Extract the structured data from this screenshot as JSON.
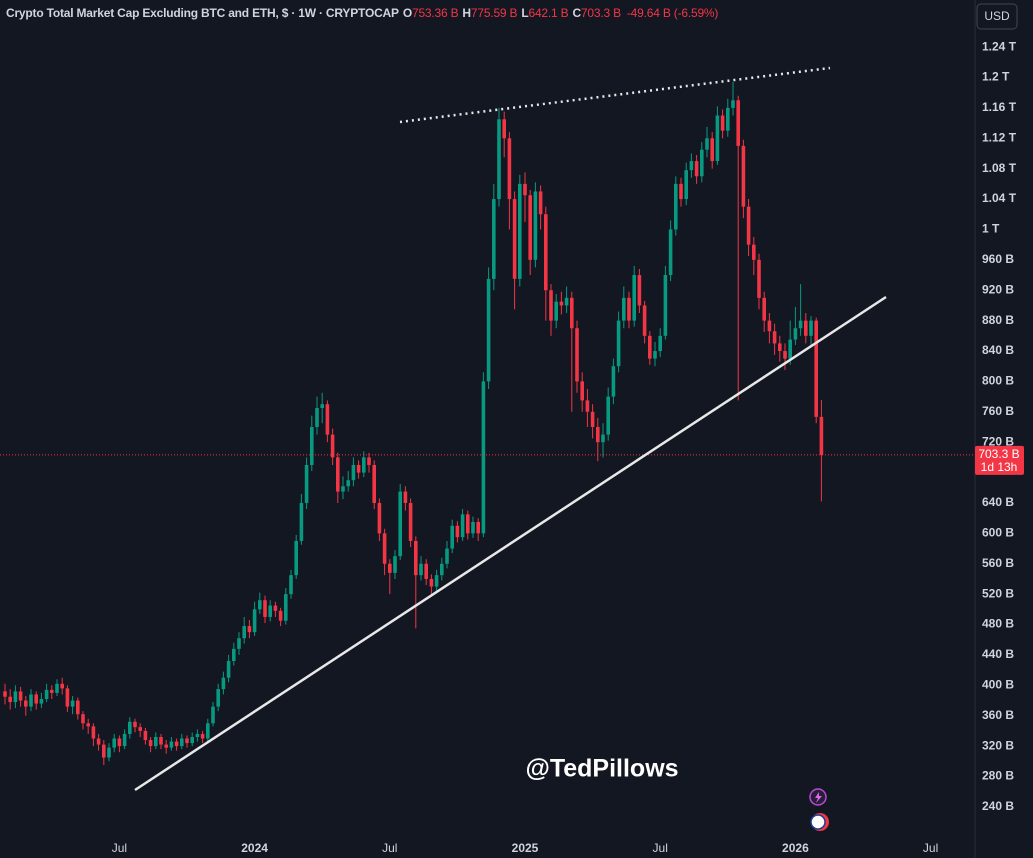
{
  "chart_data": {
    "type": "candlestick",
    "title": "Crypto Total Market Cap Excluding BTC and ETH, $ · 1W · CRYPTOCAP",
    "ohlc_header": [
      {
        "key": "O",
        "text": "753.36 B"
      },
      {
        "key": "H",
        "text": "775.59 B"
      },
      {
        "key": "L",
        "text": "642.1 B"
      },
      {
        "key": "C",
        "text": "703.3 B"
      }
    ],
    "change": "-49.64 B (-6.59%)",
    "currency": "USD",
    "last_price_label": "703.3 B",
    "countdown": "1d 13h",
    "watermark": "@TedPillows",
    "up_color": "#089981",
    "down_color": "#f23645",
    "grid": false,
    "categories": [
      null,
      null,
      null,
      null,
      null,
      null,
      null,
      null,
      null,
      null,
      null,
      null,
      null,
      null,
      null,
      null,
      null,
      null,
      null,
      null,
      null,
      null,
      "Jul",
      null,
      null,
      null,
      null,
      null,
      null,
      null,
      null,
      null,
      null,
      null,
      null,
      null,
      null,
      null,
      null,
      null,
      null,
      null,
      null,
      null,
      null,
      null,
      null,
      null,
      "2024",
      null,
      null,
      null,
      null,
      null,
      null,
      null,
      null,
      null,
      null,
      null,
      null,
      null,
      null,
      null,
      null,
      null,
      null,
      null,
      null,
      null,
      null,
      null,
      null,
      null,
      "Jul",
      null,
      null,
      null,
      null,
      null,
      null,
      null,
      null,
      null,
      null,
      null,
      null,
      null,
      null,
      null,
      null,
      null,
      null,
      null,
      null,
      null,
      null,
      null,
      null,
      null,
      "2025",
      null,
      null,
      null,
      null,
      null,
      null,
      null,
      null,
      null,
      null,
      null,
      null,
      null,
      null,
      null,
      null,
      null,
      null,
      null,
      null,
      null,
      null,
      null,
      null,
      null,
      "Jul",
      null,
      null,
      null,
      null,
      null,
      null,
      null,
      null,
      null,
      null,
      null,
      null,
      null,
      null,
      null,
      null,
      null,
      null,
      null,
      null,
      null,
      null,
      null,
      null,
      null,
      "2026",
      null,
      null,
      null,
      null,
      null,
      null,
      null,
      null,
      null,
      null,
      null,
      null,
      null,
      null,
      null,
      null,
      null,
      null,
      null,
      null,
      null,
      null,
      null,
      null,
      null,
      "Jul"
    ],
    "open": [
      392,
      385,
      378,
      392,
      380,
      372,
      388,
      376,
      382,
      394,
      390,
      402,
      396,
      372,
      380,
      362,
      350,
      346,
      330,
      322,
      305,
      318,
      330,
      320,
      336,
      352,
      345,
      340,
      328,
      320,
      332,
      322,
      318,
      326,
      320,
      330,
      324,
      332,
      336,
      330,
      350,
      372,
      395,
      410,
      432,
      448,
      462,
      478,
      470,
      500,
      512,
      490,
      505,
      498,
      485,
      520,
      545,
      590,
      640,
      690,
      740,
      765,
      770,
      730,
      700,
      655,
      662,
      670,
      690,
      680,
      700,
      690,
      640,
      600,
      560,
      548,
      570,
      655,
      640,
      590,
      545,
      560,
      540,
      530,
      545,
      560,
      580,
      610,
      595,
      625,
      600,
      615,
      600,
      800,
      935,
      1040,
      1145,
      1120,
      1040,
      935,
      1060,
      1045,
      960,
      1050,
      1020,
      920,
      880,
      905,
      900,
      910,
      870,
      800,
      775,
      760,
      740,
      720,
      730,
      780,
      820,
      880,
      910,
      880,
      940,
      900,
      860,
      830,
      840,
      860,
      940,
      1000,
      1060,
      1040,
      1078,
      1090,
      1070,
      1105,
      1120,
      1090,
      1150,
      1130,
      1160,
      1170,
      1110,
      1030,
      980,
      960,
      910,
      880,
      866,
      850,
      840,
      830,
      855,
      870,
      880,
      860,
      880,
      753.36,
      null,
      null,
      null,
      null,
      null,
      null,
      null,
      null,
      null,
      null,
      null,
      null,
      null,
      null,
      null,
      null,
      null,
      null,
      null,
      null,
      null
    ],
    "high": [
      402,
      395,
      400,
      398,
      386,
      395,
      392,
      390,
      402,
      400,
      408,
      410,
      400,
      386,
      384,
      366,
      356,
      350,
      336,
      328,
      324,
      336,
      334,
      342,
      358,
      356,
      350,
      344,
      332,
      338,
      336,
      328,
      332,
      330,
      336,
      334,
      338,
      342,
      340,
      356,
      378,
      402,
      418,
      440,
      456,
      470,
      490,
      486,
      510,
      522,
      518,
      512,
      510,
      502,
      528,
      552,
      598,
      652,
      700,
      755,
      780,
      785,
      775,
      738,
      706,
      675,
      682,
      700,
      696,
      708,
      706,
      696,
      646,
      606,
      566,
      578,
      665,
      662,
      646,
      596,
      570,
      566,
      546,
      552,
      568,
      590,
      618,
      616,
      632,
      630,
      622,
      620,
      812,
      950,
      1060,
      1160,
      1155,
      1128,
      1050,
      1072,
      1075,
      1052,
      1062,
      1058,
      1030,
      928,
      915,
      918,
      925,
      918,
      880,
      812,
      790,
      770,
      752,
      745,
      792,
      830,
      892,
      925,
      918,
      952,
      948,
      906,
      866,
      852,
      870,
      952,
      1012,
      1070,
      1068,
      1088,
      1100,
      1098,
      1115,
      1135,
      1128,
      1162,
      1158,
      1172,
      1194,
      1176,
      1118,
      1040,
      990,
      968,
      918,
      890,
      876,
      860,
      850,
      880,
      898,
      928,
      890,
      886,
      884,
      775.59,
      null,
      null,
      null,
      null,
      null,
      null,
      null,
      null,
      null,
      null,
      null,
      null,
      null,
      null,
      null,
      null,
      null,
      null,
      null,
      null,
      null
    ],
    "low": [
      375,
      368,
      370,
      372,
      360,
      366,
      368,
      370,
      378,
      382,
      386,
      388,
      365,
      362,
      355,
      342,
      336,
      320,
      314,
      295,
      300,
      312,
      312,
      316,
      330,
      338,
      332,
      322,
      312,
      316,
      316,
      310,
      314,
      314,
      316,
      318,
      320,
      326,
      324,
      326,
      346,
      366,
      388,
      404,
      426,
      440,
      455,
      462,
      465,
      494,
      482,
      484,
      490,
      478,
      480,
      514,
      540,
      585,
      632,
      682,
      730,
      745,
      720,
      690,
      640,
      645,
      655,
      662,
      672,
      674,
      680,
      632,
      590,
      545,
      520,
      540,
      565,
      630,
      582,
      475,
      538,
      532,
      520,
      522,
      538,
      554,
      574,
      588,
      590,
      592,
      594,
      590,
      595,
      790,
      920,
      1030,
      1095,
      1000,
      895,
      925,
      1010,
      940,
      950,
      1000,
      880,
      860,
      870,
      888,
      890,
      760,
      785,
      760,
      740,
      725,
      695,
      700,
      722,
      770,
      812,
      870,
      870,
      872,
      890,
      850,
      822,
      820,
      832,
      855,
      932,
      992,
      1030,
      1032,
      1068,
      1060,
      1062,
      1095,
      1080,
      1085,
      1120,
      1122,
      1150,
      775,
      1015,
      965,
      940,
      895,
      865,
      850,
      835,
      826,
      815,
      822,
      848,
      860,
      850,
      845,
      745,
      642.1,
      null,
      null,
      null,
      null,
      null,
      null,
      null,
      null,
      null,
      null,
      null,
      null,
      null,
      null,
      null,
      null,
      null,
      null,
      null,
      null,
      null
    ],
    "close": [
      385,
      378,
      392,
      380,
      372,
      388,
      376,
      382,
      394,
      390,
      402,
      396,
      372,
      380,
      362,
      350,
      346,
      330,
      322,
      305,
      318,
      330,
      320,
      336,
      352,
      345,
      340,
      328,
      320,
      332,
      322,
      318,
      326,
      320,
      330,
      324,
      332,
      336,
      330,
      350,
      372,
      395,
      410,
      432,
      448,
      462,
      478,
      470,
      500,
      512,
      490,
      505,
      498,
      485,
      520,
      545,
      590,
      640,
      690,
      740,
      765,
      770,
      730,
      700,
      655,
      662,
      670,
      690,
      680,
      700,
      690,
      640,
      600,
      560,
      548,
      570,
      655,
      640,
      590,
      545,
      560,
      540,
      530,
      545,
      560,
      580,
      610,
      595,
      625,
      600,
      615,
      600,
      800,
      935,
      1040,
      1145,
      1120,
      1040,
      935,
      1060,
      1045,
      960,
      1050,
      1020,
      920,
      880,
      905,
      900,
      910,
      870,
      800,
      775,
      760,
      740,
      720,
      730,
      780,
      820,
      880,
      910,
      880,
      940,
      900,
      860,
      830,
      840,
      860,
      940,
      1000,
      1060,
      1040,
      1078,
      1090,
      1070,
      1105,
      1120,
      1090,
      1150,
      1130,
      1160,
      1170,
      1110,
      1030,
      980,
      960,
      910,
      880,
      866,
      850,
      840,
      830,
      855,
      870,
      880,
      860,
      880,
      753.36,
      703.3,
      null,
      null,
      null,
      null,
      null,
      null,
      null,
      null,
      null,
      null,
      null,
      null,
      null,
      null,
      null,
      null,
      null,
      null,
      null,
      null,
      null
    ],
    "ylim": [
      203,
      1302
    ],
    "yticks": [
      {
        "value": 240,
        "label": "240 B"
      },
      {
        "value": 280,
        "label": "280 B"
      },
      {
        "value": 320,
        "label": "320 B"
      },
      {
        "value": 360,
        "label": "360 B"
      },
      {
        "value": 400,
        "label": "400 B"
      },
      {
        "value": 440,
        "label": "440 B"
      },
      {
        "value": 480,
        "label": "480 B"
      },
      {
        "value": 520,
        "label": "520 B"
      },
      {
        "value": 560,
        "label": "560 B"
      },
      {
        "value": 600,
        "label": "600 B"
      },
      {
        "value": 640,
        "label": "640 B"
      },
      {
        "value": 720,
        "label": "720 B"
      },
      {
        "value": 760,
        "label": "760 B"
      },
      {
        "value": 800,
        "label": "800 B"
      },
      {
        "value": 840,
        "label": "840 B"
      },
      {
        "value": 880,
        "label": "880 B"
      },
      {
        "value": 920,
        "label": "920 B"
      },
      {
        "value": 960,
        "label": "960 B"
      },
      {
        "value": 1000,
        "label": "1 T"
      },
      {
        "value": 1040,
        "label": "1.04 T"
      },
      {
        "value": 1080,
        "label": "1.08 T"
      },
      {
        "value": 1120,
        "label": "1.12 T"
      },
      {
        "value": 1160,
        "label": "1.16 T"
      },
      {
        "value": 1200,
        "label": "1.2 T"
      },
      {
        "value": 1240,
        "label": "1.24 T"
      }
    ]
  }
}
